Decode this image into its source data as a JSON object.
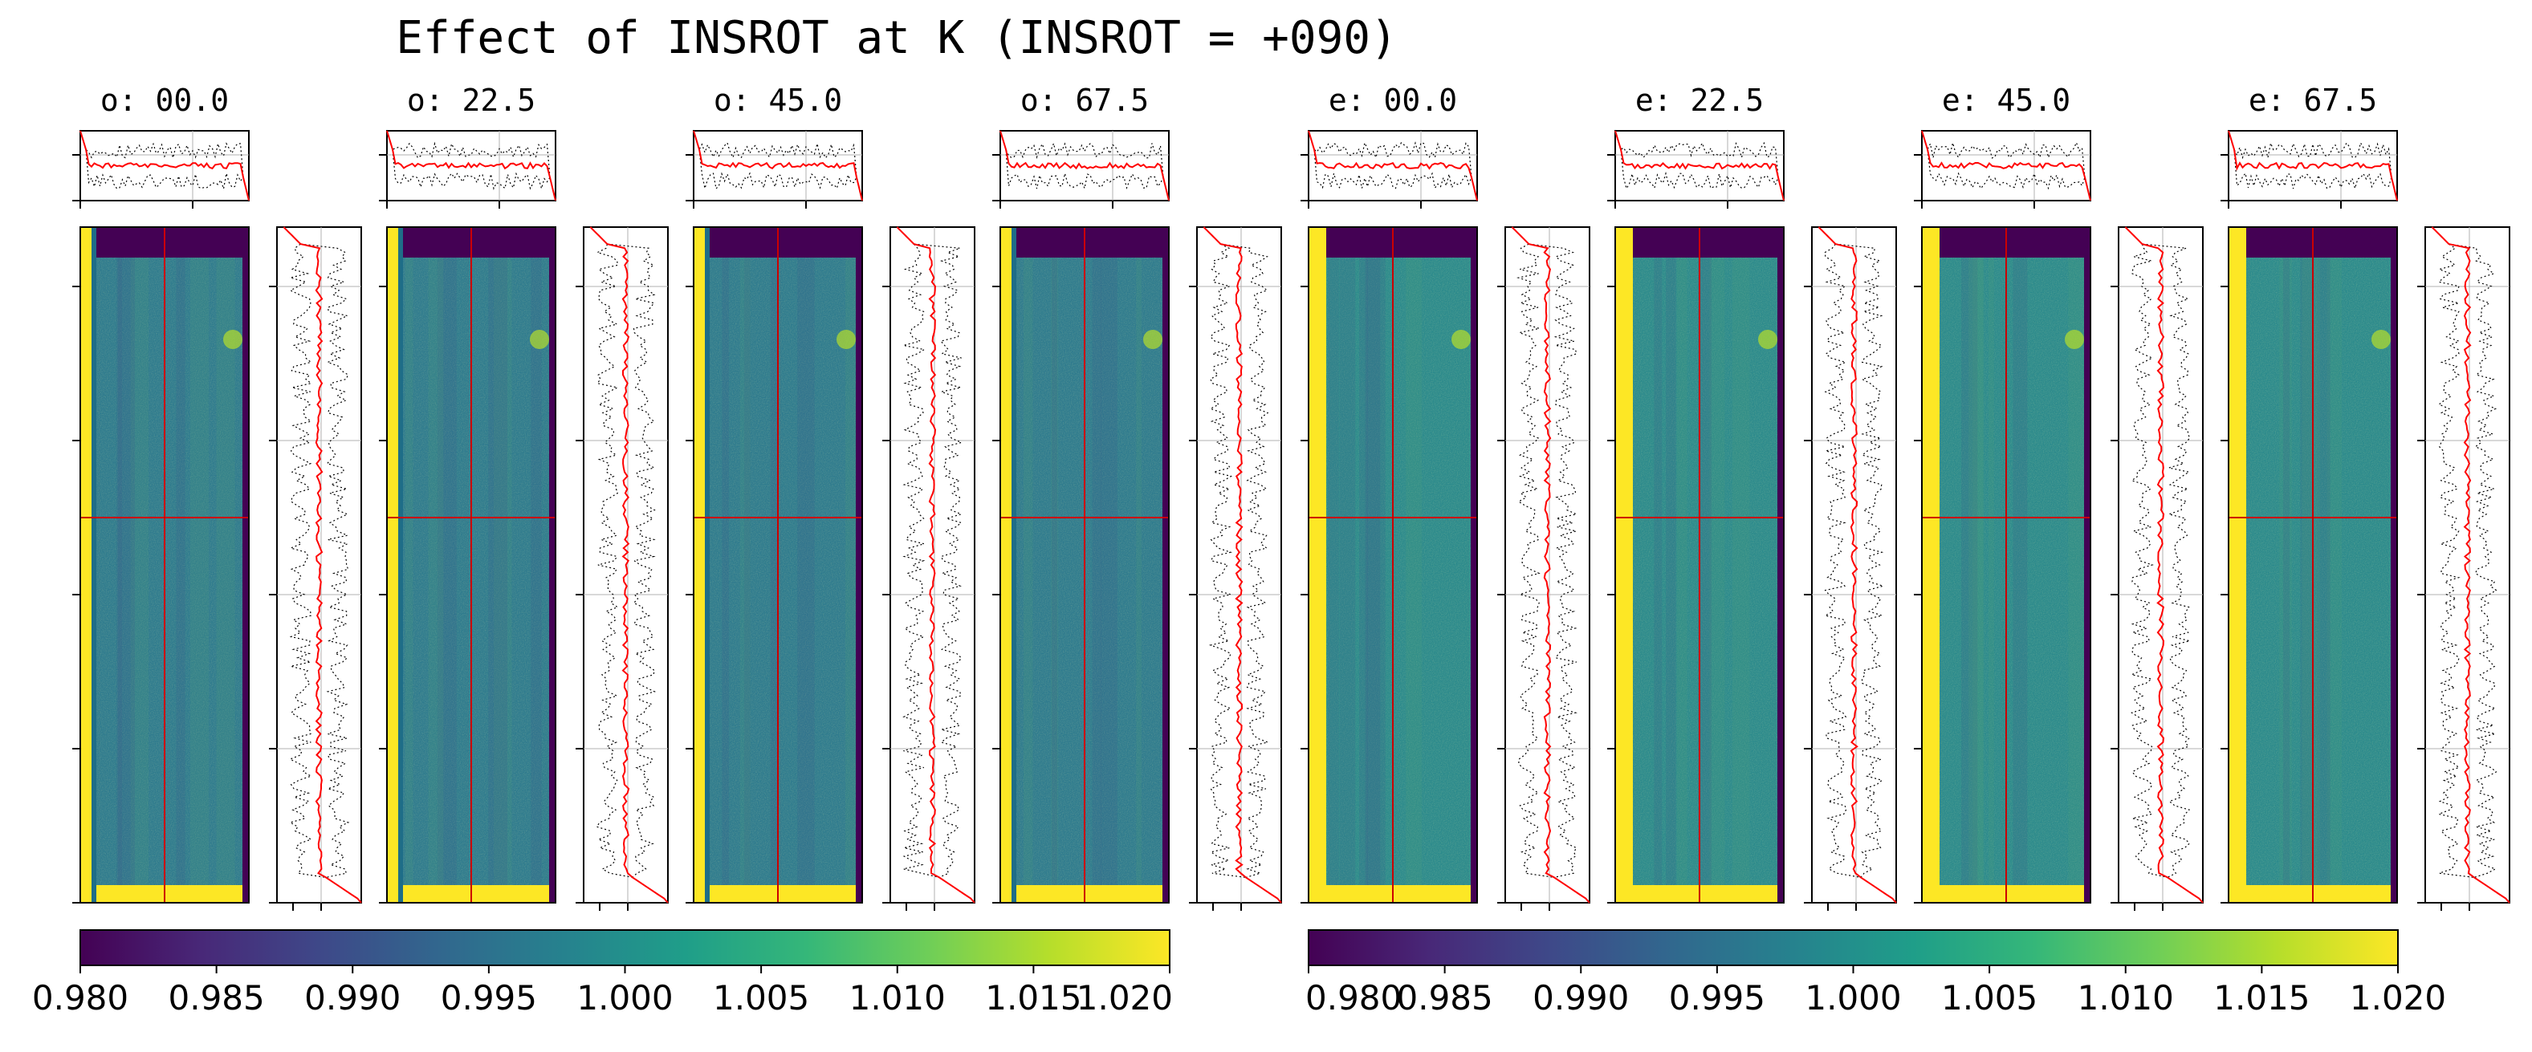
{
  "title": "Effect of INSROT at K (INSROT = +090)",
  "colors": {
    "cmap": [
      "#440154",
      "#482878",
      "#3e4989",
      "#31688e",
      "#26828e",
      "#1f9e89",
      "#35b779",
      "#6ece58",
      "#b5de2b",
      "#fde725"
    ],
    "median_line": "#ff0000",
    "spread_line": "#000000",
    "crosshair": "#cc0000",
    "grid": "#b0b0b0"
  },
  "chart_data": {
    "type": "heatmap",
    "panels": [
      {
        "label": "o: 00.0",
        "beam": "o",
        "angle": 0.0
      },
      {
        "label": "o: 22.5",
        "beam": "o",
        "angle": 22.5
      },
      {
        "label": "o: 45.0",
        "beam": "o",
        "angle": 45.0
      },
      {
        "label": "o: 67.5",
        "beam": "o",
        "angle": 67.5
      },
      {
        "label": "e: 00.0",
        "beam": "e",
        "angle": 0.0
      },
      {
        "label": "e: 22.5",
        "beam": "e",
        "angle": 22.5
      },
      {
        "label": "e: 45.0",
        "beam": "e",
        "angle": 45.0
      },
      {
        "label": "e: 67.5",
        "beam": "e",
        "angle": 67.5
      }
    ],
    "colorbars": [
      {
        "vmin": 0.98,
        "vmax": 1.02,
        "ticks": [
          "0.980",
          "0.985",
          "0.990",
          "0.995",
          "1.000",
          "1.005",
          "1.010",
          "1.015",
          "1.020"
        ]
      },
      {
        "vmin": 0.98,
        "vmax": 1.02,
        "ticks": [
          "0.980",
          "0.985",
          "0.990",
          "0.995",
          "1.000",
          "1.005",
          "1.010",
          "1.015",
          "1.020"
        ]
      }
    ],
    "profiles": {
      "median_line": "red solid",
      "spread_lines": "black dotted",
      "x_profile": "top panels",
      "y_profile": "right panels"
    },
    "grid": true
  }
}
